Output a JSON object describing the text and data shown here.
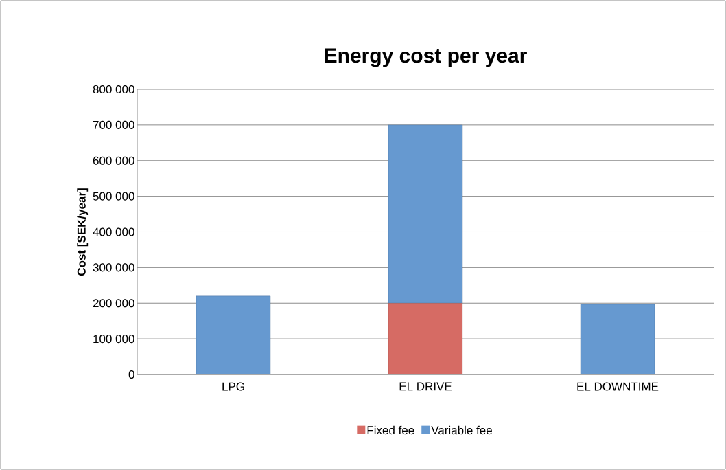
{
  "chart_data": {
    "type": "bar",
    "title": "Energy cost per year",
    "ylabel": "Cost [SEK/year]",
    "categories": [
      "LPG",
      "EL DRIVE",
      "EL DOWNTIME"
    ],
    "stacked": true,
    "series": [
      {
        "name": "Fixed fee",
        "color": "#d66b64",
        "values": [
          0,
          200000,
          0
        ]
      },
      {
        "name": "Variable fee",
        "color": "#6699d0",
        "values": [
          220000,
          500000,
          197000
        ]
      }
    ],
    "ylim": [
      0,
      800000
    ],
    "yticks": [
      {
        "value": 0,
        "label": "0"
      },
      {
        "value": 100000,
        "label": "100 000"
      },
      {
        "value": 200000,
        "label": "200 000"
      },
      {
        "value": 300000,
        "label": "300 000"
      },
      {
        "value": 400000,
        "label": "400 000"
      },
      {
        "value": 500000,
        "label": "500 000"
      },
      {
        "value": 600000,
        "label": "600 000"
      },
      {
        "value": 700000,
        "label": "700 000"
      },
      {
        "value": 800000,
        "label": "800 000"
      }
    ],
    "grid": "y",
    "legend": "bottom"
  }
}
